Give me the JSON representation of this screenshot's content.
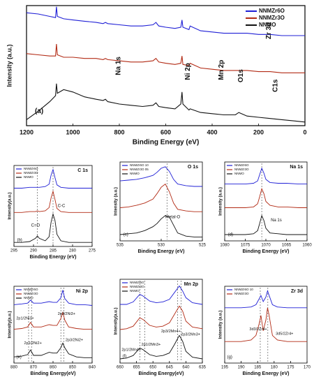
{
  "chart_data": [
    {
      "type": "line",
      "panel": "a",
      "xlabel": "Binding Energy (eV)",
      "ylabel": "Intensity (a.u.)",
      "xlim": [
        1200,
        0
      ],
      "xticks": [
        1200,
        1000,
        800,
        600,
        400,
        200,
        0
      ],
      "ylim": [
        0,
        100
      ],
      "legend": "upper right",
      "annotations": [
        "Na 1s",
        "Ni 2p",
        "Mn 2p",
        "O1s",
        "C1s",
        "Zr 3d",
        "(a)"
      ],
      "x": [
        1200,
        1150,
        1100,
        1075,
        1071,
        1067,
        1040,
        1000,
        950,
        900,
        870,
        860,
        850,
        800,
        750,
        700,
        655,
        642,
        630,
        600,
        560,
        535,
        530,
        526,
        500,
        495,
        450,
        400,
        350,
        300,
        285,
        250,
        200,
        150,
        100,
        50,
        0
      ],
      "series": [
        {
          "name": "NNMZr6O",
          "color": "#1f1fd6",
          "values": [
            94,
            93,
            91,
            90,
            99,
            91,
            89,
            88,
            87,
            86,
            85,
            86,
            85,
            84,
            83,
            83,
            84,
            86,
            83,
            82,
            81,
            82,
            88,
            82,
            80,
            83,
            79,
            78,
            77,
            77,
            77,
            77,
            76,
            76,
            75,
            75,
            75
          ]
        },
        {
          "name": "NNMZr3O",
          "color": "#b22a14",
          "values": [
            60,
            59,
            58,
            58,
            68,
            59,
            57,
            57,
            56,
            56,
            55,
            56,
            55,
            54,
            53,
            53,
            54,
            56,
            53,
            52,
            51,
            52,
            58,
            51,
            50,
            52,
            48,
            47,
            46,
            46,
            46,
            46,
            45,
            45,
            44,
            44,
            44
          ]
        },
        {
          "name": "NNMO",
          "color": "#111111",
          "values": [
            5,
            12,
            20,
            25,
            35,
            27,
            30,
            28,
            24,
            22,
            21,
            22,
            20,
            18,
            17,
            16,
            17,
            19,
            16,
            15,
            14,
            18,
            28,
            18,
            13,
            14,
            11,
            10,
            9,
            9,
            11,
            8,
            7,
            6,
            5,
            4,
            3
          ]
        }
      ]
    },
    {
      "type": "line",
      "panel": "b",
      "title": "C 1s",
      "xlabel": "Binding Energy (eV)",
      "ylabel": "Intensity(a.u.)",
      "xlim": [
        295,
        275
      ],
      "xticks": [
        295,
        290,
        285,
        280,
        275
      ],
      "ylim": [
        0,
        100
      ],
      "legend": "upper left",
      "vlines": [
        289,
        285
      ],
      "annotations": [
        "C=O",
        "C-C",
        "(b)"
      ],
      "x": [
        295,
        293,
        291,
        289.5,
        289,
        288.5,
        287,
        286,
        285.5,
        285,
        284.5,
        284,
        283,
        281,
        279,
        277,
        275
      ],
      "series": [
        {
          "name": "NNMZr6O",
          "color": "#1f1fd6",
          "values": [
            72,
            72,
            73,
            73,
            73,
            73,
            74,
            77,
            88,
            95,
            85,
            76,
            73,
            72,
            72,
            72,
            72
          ]
        },
        {
          "name": "NNMZr3O",
          "color": "#b22a14",
          "values": [
            42,
            42,
            43,
            43,
            44,
            43,
            44,
            48,
            60,
            68,
            58,
            47,
            43,
            42,
            42,
            42,
            42
          ]
        },
        {
          "name": "NNMO",
          "color": "#111111",
          "values": [
            5,
            5,
            6,
            10,
            13,
            10,
            7,
            12,
            30,
            40,
            32,
            15,
            7,
            5,
            5,
            5,
            5
          ]
        }
      ]
    },
    {
      "type": "line",
      "panel": "c",
      "title": "O 1s",
      "xlabel": "Binding Energy (eV)",
      "ylabel": "Intensity (a.u.)",
      "xlim": [
        535,
        525
      ],
      "xticks": [
        535,
        530,
        525
      ],
      "ylim": [
        0,
        100
      ],
      "legend": "upper left",
      "vlines": [
        529.3
      ],
      "annotations": [
        "Metal-O",
        "(c)"
      ],
      "x": [
        535,
        534,
        533,
        532,
        531,
        530.5,
        530,
        529.5,
        529,
        528.5,
        528,
        527,
        526,
        525
      ],
      "series": [
        {
          "name": "NNMZr6O 10",
          "color": "#1f1fd6",
          "values": [
            76,
            77,
            78,
            80,
            83,
            87,
            92,
            94,
            88,
            78,
            72,
            70,
            69,
            69
          ]
        },
        {
          "name": "NNMZr3O 05",
          "color": "#b22a14",
          "values": [
            42,
            43,
            45,
            48,
            53,
            60,
            68,
            72,
            62,
            48,
            40,
            38,
            37,
            37
          ]
        },
        {
          "name": "NNMO",
          "color": "#111111",
          "values": [
            8,
            9,
            10,
            13,
            18,
            22,
            28,
            32,
            30,
            20,
            10,
            6,
            5,
            5
          ]
        }
      ]
    },
    {
      "type": "line",
      "panel": "d",
      "title": "Na 1s",
      "xlabel": "Binding Energy (eV)",
      "ylabel": "Intensity (a.u.)",
      "xlim": [
        1080,
        1060
      ],
      "xticks": [
        1080,
        1075,
        1070,
        1065,
        1060
      ],
      "ylim": [
        0,
        100
      ],
      "legend": "upper left",
      "vlines": [
        1071
      ],
      "annotations": [
        "Na 1s",
        "(d)"
      ],
      "x": [
        1080,
        1077,
        1075,
        1073,
        1072,
        1071.5,
        1071,
        1070.5,
        1070,
        1069,
        1067,
        1065,
        1062,
        1060
      ],
      "series": [
        {
          "name": "NNMZr6O",
          "color": "#1f1fd6",
          "values": [
            72,
            72,
            72,
            73,
            76,
            84,
            92,
            86,
            78,
            74,
            73,
            73,
            72,
            72
          ]
        },
        {
          "name": "NNMZr3O",
          "color": "#b22a14",
          "values": [
            42,
            42,
            42,
            43,
            47,
            56,
            66,
            60,
            50,
            45,
            43,
            43,
            42,
            42
          ]
        },
        {
          "name": "NNMO",
          "color": "#111111",
          "values": [
            8,
            8,
            8,
            9,
            13,
            22,
            32,
            26,
            16,
            10,
            9,
            8,
            8,
            8
          ]
        }
      ]
    },
    {
      "type": "line",
      "panel": "e",
      "title": "Ni 2p",
      "xlabel": "Binding Energy(eV)",
      "ylabel": "Intensity(a.u.)",
      "xlim": [
        880,
        840
      ],
      "xticks": [
        880,
        870,
        860,
        850,
        840
      ],
      "ylim": [
        0,
        100
      ],
      "legend": "upper left",
      "vlines": [
        872.5,
        871,
        856,
        854.5
      ],
      "annotations": [
        "2p1/2Ni3+",
        "2p3/2Ni3+",
        "2p1/2Ni2+",
        "2p3/2Ni2+",
        "(e)"
      ],
      "x": [
        880,
        876,
        873,
        871.5,
        870,
        866,
        862,
        860,
        858,
        856,
        855,
        854,
        852,
        848,
        844,
        840
      ],
      "series": [
        {
          "name": "NNMZr6O",
          "color": "#1f1fd6",
          "values": [
            76,
            77,
            78,
            82,
            78,
            78,
            80,
            79,
            79,
            85,
            95,
            84,
            78,
            76,
            76,
            75
          ]
        },
        {
          "name": "NNMZr3O",
          "color": "#b22a14",
          "values": [
            44,
            45,
            47,
            53,
            47,
            47,
            50,
            49,
            49,
            58,
            66,
            56,
            47,
            45,
            44,
            44
          ]
        },
        {
          "name": "NNMO",
          "color": "#111111",
          "values": [
            8,
            9,
            11,
            17,
            10,
            10,
            14,
            13,
            13,
            20,
            26,
            20,
            12,
            8,
            7,
            7
          ]
        }
      ]
    },
    {
      "type": "line",
      "panel": "f",
      "title": "Mn 2p",
      "xlabel": "Binding Energy(eV)",
      "ylabel": "Intensity(a.u.)",
      "xlim": [
        660,
        635
      ],
      "xticks": [
        660,
        655,
        650,
        645,
        640,
        635
      ],
      "ylim": [
        0,
        100
      ],
      "legend": "upper left",
      "vlines": [
        654,
        652.5,
        642.5,
        641.5
      ],
      "annotations": [
        "2p1/2Mn4+",
        "2p1/2Mn3+",
        "2p3/2Mn4+",
        "2p3/2Mn3+",
        "(f)"
      ],
      "x": [
        660,
        658,
        656,
        654,
        653,
        651,
        649,
        647,
        645,
        643.5,
        642,
        641,
        640,
        638,
        635
      ],
      "series": [
        {
          "name": "NNMZr6O",
          "color": "#1f1fd6",
          "values": [
            70,
            70,
            73,
            82,
            80,
            74,
            72,
            73,
            76,
            84,
            92,
            86,
            78,
            72,
            70
          ]
        },
        {
          "name": "NNMZr3O",
          "color": "#b22a14",
          "values": [
            40,
            41,
            44,
            54,
            52,
            45,
            43,
            44,
            48,
            58,
            68,
            62,
            50,
            43,
            41
          ]
        },
        {
          "name": "NNMO",
          "color": "#111111",
          "values": [
            5,
            6,
            9,
            18,
            16,
            10,
            8,
            9,
            12,
            22,
            33,
            26,
            14,
            7,
            5
          ]
        }
      ]
    },
    {
      "type": "line",
      "panel": "g",
      "title": "Zr 3d",
      "xlabel": "Binding Energy (eV)",
      "ylabel": "Intensity (a.u.)",
      "xlim": [
        195,
        170
      ],
      "xticks": [
        195,
        190,
        185,
        180,
        175,
        170
      ],
      "ylim": [
        0,
        100
      ],
      "legend": "upper left",
      "vlines": [
        184.2,
        181.9
      ],
      "annotations": [
        "3d3/2Zr4+",
        "3d5/2Zr4+",
        "(g)"
      ],
      "x": [
        195,
        190,
        187,
        185.5,
        184.5,
        184,
        183.3,
        182.5,
        182,
        181.5,
        180.5,
        179,
        176,
        173,
        170
      ],
      "series": [
        {
          "name": "NNMZr6O 10",
          "color": "#1f1fd6",
          "values": [
            72,
            72,
            73,
            76,
            84,
            88,
            80,
            86,
            94,
            88,
            76,
            73,
            72,
            72,
            72
          ]
        },
        {
          "name": "NNMZr3O",
          "color": "#b22a14",
          "values": [
            28,
            28,
            30,
            36,
            52,
            62,
            42,
            56,
            72,
            62,
            36,
            30,
            28,
            28,
            28
          ]
        }
      ]
    }
  ]
}
